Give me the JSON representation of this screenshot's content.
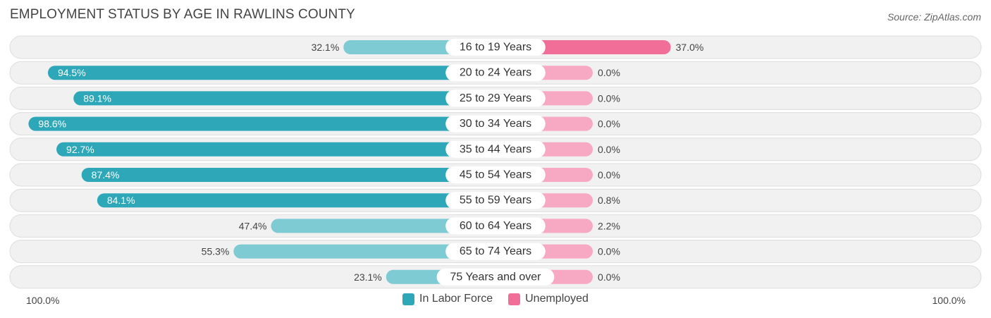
{
  "title": "EMPLOYMENT STATUS BY AGE IN RAWLINS COUNTY",
  "source": "Source: ZipAtlas.com",
  "colors": {
    "labor_dark": "#2ea7b8",
    "labor_light": "#7ecbd4",
    "unemp_dark": "#f06e98",
    "unemp_light": "#f7a8c2",
    "row_bg": "#f1f1f1",
    "row_border": "#dddddd"
  },
  "chart_data": {
    "type": "bar",
    "orientation": "horizontal-diverging",
    "title": "EMPLOYMENT STATUS BY AGE IN RAWLINS COUNTY",
    "categories": [
      "16 to 19 Years",
      "20 to 24 Years",
      "25 to 29 Years",
      "30 to 34 Years",
      "35 to 44 Years",
      "45 to 54 Years",
      "55 to 59 Years",
      "60 to 64 Years",
      "65 to 74 Years",
      "75 Years and over"
    ],
    "series": [
      {
        "name": "In Labor Force",
        "values": [
          32.1,
          94.5,
          89.1,
          98.6,
          92.7,
          87.4,
          84.1,
          47.4,
          55.3,
          23.1
        ]
      },
      {
        "name": "Unemployed",
        "values": [
          37.0,
          0.0,
          0.0,
          0.0,
          0.0,
          0.0,
          0.8,
          2.2,
          0.0,
          0.0
        ]
      }
    ],
    "value_labels": {
      "In Labor Force": [
        "32.1%",
        "94.5%",
        "89.1%",
        "98.6%",
        "92.7%",
        "87.4%",
        "84.1%",
        "47.4%",
        "55.3%",
        "23.1%"
      ],
      "Unemployed": [
        "37.0%",
        "0.0%",
        "0.0%",
        "0.0%",
        "0.0%",
        "0.0%",
        "0.8%",
        "2.2%",
        "0.0%",
        "0.0%"
      ]
    },
    "axis_left_label": "100.0%",
    "axis_right_label": "100.0%",
    "xlim": [
      -100,
      100
    ],
    "legend": [
      "In Labor Force",
      "Unemployed"
    ],
    "legend_position": "bottom-center"
  }
}
